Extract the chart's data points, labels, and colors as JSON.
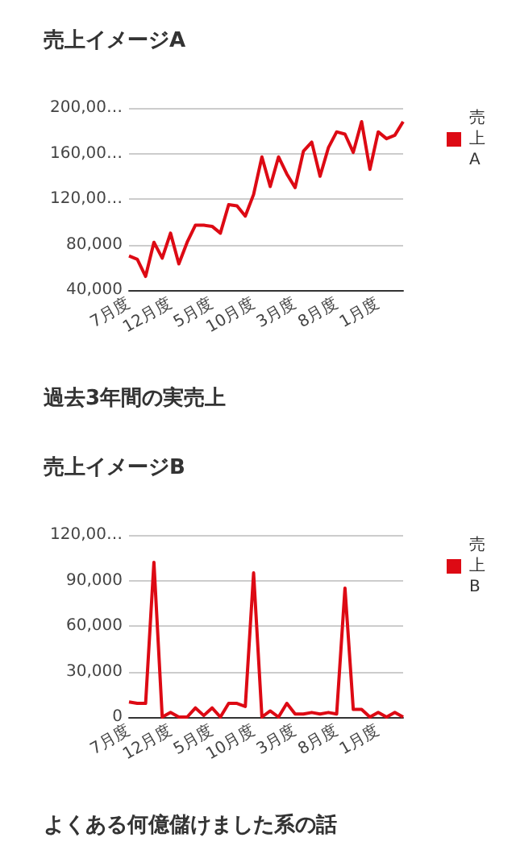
{
  "chart_data": [
    {
      "type": "line",
      "title": "売上イメージA",
      "categories": [
        "7月度",
        null,
        null,
        null,
        null,
        "12月度",
        null,
        null,
        null,
        null,
        "5月度",
        null,
        null,
        null,
        null,
        "10月度",
        null,
        null,
        null,
        null,
        "3月度",
        null,
        null,
        null,
        null,
        "8月度",
        null,
        null,
        null,
        null,
        "1月度",
        null,
        null,
        null
      ],
      "series": [
        {
          "name": "売上A",
          "color": "#dd0a14",
          "values": [
            70000,
            67000,
            52000,
            82000,
            68000,
            90000,
            63000,
            82000,
            97000,
            97000,
            96000,
            90000,
            115000,
            114000,
            105000,
            124000,
            157000,
            131000,
            157000,
            142000,
            130000,
            162000,
            170000,
            140000,
            165000,
            179000,
            177000,
            161000,
            188000,
            146000,
            179000,
            173000,
            176000,
            188000
          ]
        }
      ],
      "ylim": [
        40000,
        200000
      ],
      "yticks": [
        {
          "value": 40000,
          "label": "40,000"
        },
        {
          "value": 80000,
          "label": "80,000"
        },
        {
          "value": 120000,
          "label": "120,00…"
        },
        {
          "value": 160000,
          "label": "160,00…"
        },
        {
          "value": 200000,
          "label": "200,00…"
        }
      ],
      "grid": "y",
      "legend": "top right",
      "marker": "none",
      "annotations": [
        "過去3年間の実売上"
      ]
    },
    {
      "type": "line",
      "title": "売上イメージB",
      "categories": [
        "7月度",
        null,
        null,
        null,
        null,
        "12月度",
        null,
        null,
        null,
        null,
        "5月度",
        null,
        null,
        null,
        null,
        "10月度",
        null,
        null,
        null,
        null,
        "3月度",
        null,
        null,
        null,
        null,
        "8月度",
        null,
        null,
        null,
        null,
        "1月度",
        null,
        null,
        null
      ],
      "series": [
        {
          "name": "売上B",
          "color": "#dd0a14",
          "values": [
            10000,
            9000,
            9000,
            102000,
            0,
            3000,
            0,
            0,
            6000,
            1000,
            6000,
            0,
            9000,
            9000,
            7000,
            95000,
            0,
            4000,
            0,
            9000,
            2000,
            2000,
            3000,
            2000,
            3000,
            2000,
            85000,
            5000,
            5000,
            0,
            3000,
            0,
            3000,
            0
          ]
        }
      ],
      "ylim": [
        0,
        120000
      ],
      "yticks": [
        0,
        {
          "value": 30000,
          "label": "30,000"
        },
        {
          "value": 60000,
          "label": "60,000"
        },
        {
          "value": 90000,
          "label": "90,000"
        },
        {
          "value": 120000,
          "label": "120,00…"
        }
      ],
      "grid": "y",
      "legend": "top right",
      "marker": "none",
      "annotations": [
        "よくある何億儲けました系の話"
      ]
    }
  ]
}
